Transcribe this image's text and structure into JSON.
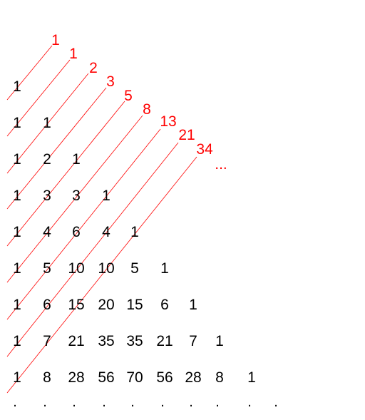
{
  "colors": {
    "numbers": "#000000",
    "fibonacci": "#ff0000",
    "diagonals": "#ff0000",
    "background": "#ffffff"
  },
  "triangle_rows": [
    [
      "1"
    ],
    [
      "1",
      "1"
    ],
    [
      "1",
      "2",
      "1"
    ],
    [
      "1",
      "3",
      "3",
      "1"
    ],
    [
      "1",
      "4",
      "6",
      "4",
      "1"
    ],
    [
      "1",
      "5",
      "10",
      "10",
      "5",
      "1"
    ],
    [
      "1",
      "6",
      "15",
      "20",
      "15",
      "6",
      "1"
    ],
    [
      "1",
      "7",
      "21",
      "35",
      "35",
      "21",
      "7",
      "1"
    ],
    [
      "1",
      "8",
      "28",
      "56",
      "70",
      "56",
      "28",
      "8",
      "1"
    ]
  ],
  "fibonacci_sums": [
    "1",
    "1",
    "2",
    "3",
    "5",
    "8",
    "13",
    "21",
    "34"
  ],
  "fibonacci_continuation": "...",
  "continuation_dots": [
    ".",
    ".",
    ".",
    ".",
    ".",
    ".",
    ".",
    ".",
    ".",
    "."
  ]
}
